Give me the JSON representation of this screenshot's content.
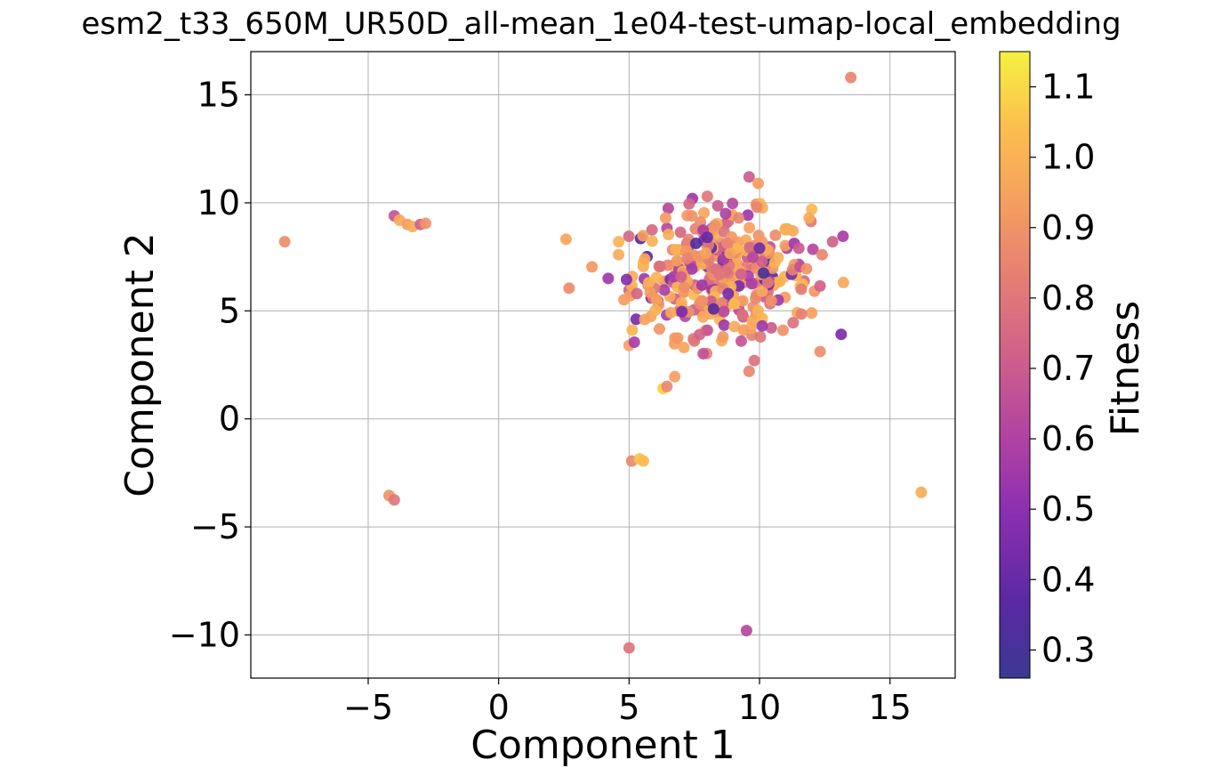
{
  "chart_data": {
    "type": "scatter",
    "title": "esm2_t33_650M_UR50D_all-mean_1e04-test-umap-local_embedding",
    "xlabel": "Component 1",
    "ylabel": "Component 2",
    "xlim": [
      -9.5,
      17.5
    ],
    "ylim": [
      -12,
      17
    ],
    "xticks": [
      -5,
      0,
      5,
      10,
      15
    ],
    "yticks": [
      -10,
      -5,
      0,
      5,
      10,
      15
    ],
    "xtick_labels": [
      "−5",
      "0",
      "5",
      "10",
      "15"
    ],
    "ytick_labels": [
      "−10",
      "−5",
      "0",
      "5",
      "10",
      "15"
    ],
    "grid": true,
    "colormap": "plasma",
    "colorbar": {
      "label": "Fitness",
      "range": [
        0.26,
        1.15
      ],
      "ticks": [
        0.3,
        0.4,
        0.5,
        0.6,
        0.7,
        0.8,
        0.9,
        1.0,
        1.1
      ],
      "tick_labels": [
        "0.3",
        "0.4",
        "0.5",
        "0.6",
        "0.7",
        "0.8",
        "0.9",
        "1.0",
        "1.1"
      ]
    },
    "points": [
      {
        "x": 13.5,
        "y": 15.8,
        "c": 0.85
      },
      {
        "x": -8.2,
        "y": 8.2,
        "c": 0.88
      },
      {
        "x": -4.0,
        "y": 9.4,
        "c": 0.68
      },
      {
        "x": -3.8,
        "y": 9.2,
        "c": 0.97
      },
      {
        "x": -3.5,
        "y": 9.0,
        "c": 0.93
      },
      {
        "x": -3.3,
        "y": 8.9,
        "c": 0.99
      },
      {
        "x": -3.0,
        "y": 9.0,
        "c": 0.72
      },
      {
        "x": -2.8,
        "y": 9.05,
        "c": 0.9
      },
      {
        "x": 2.7,
        "y": 6.05,
        "c": 0.87
      },
      {
        "x": 4.2,
        "y": 6.5,
        "c": 0.55
      },
      {
        "x": 4.9,
        "y": 6.45,
        "c": 0.48
      },
      {
        "x": 5.0,
        "y": 3.4,
        "c": 0.95
      },
      {
        "x": 5.2,
        "y": 3.55,
        "c": 0.58
      },
      {
        "x": 6.3,
        "y": 1.4,
        "c": 1.08
      },
      {
        "x": 6.45,
        "y": 1.5,
        "c": 0.86
      },
      {
        "x": 5.1,
        "y": -1.95,
        "c": 0.86
      },
      {
        "x": 5.4,
        "y": -1.85,
        "c": 1.05
      },
      {
        "x": 5.55,
        "y": -1.95,
        "c": 1.03
      },
      {
        "x": -4.2,
        "y": -3.55,
        "c": 0.9
      },
      {
        "x": -4.0,
        "y": -3.75,
        "c": 0.8
      },
      {
        "x": 16.2,
        "y": -3.4,
        "c": 0.98
      },
      {
        "x": 9.5,
        "y": -9.8,
        "c": 0.62
      },
      {
        "x": 5.0,
        "y": -10.6,
        "c": 0.79
      },
      {
        "x": 9.6,
        "y": 11.2,
        "c": 0.7
      },
      {
        "x": 9.95,
        "y": 10.9,
        "c": 0.93
      },
      {
        "x": 9.9,
        "y": 9.8,
        "c": 0.85
      },
      {
        "x": 8.0,
        "y": 10.3,
        "c": 0.8
      },
      {
        "x": 7.3,
        "y": 9.95,
        "c": 0.75
      },
      {
        "x": 12.0,
        "y": 9.7,
        "c": 1.02
      },
      {
        "x": 11.9,
        "y": 9.3,
        "c": 0.98
      },
      {
        "x": 13.2,
        "y": 8.45,
        "c": 0.58
      },
      {
        "x": 12.8,
        "y": 8.2,
        "c": 0.72
      },
      {
        "x": 12.4,
        "y": 7.6,
        "c": 0.85
      },
      {
        "x": 11.8,
        "y": 6.95,
        "c": 0.9
      },
      {
        "x": 11.6,
        "y": 6.0,
        "c": 0.82
      },
      {
        "x": 12.0,
        "y": 4.9,
        "c": 0.94
      },
      {
        "x": 11.6,
        "y": 4.85,
        "c": 0.83
      },
      {
        "x": 7.1,
        "y": 3.3,
        "c": 0.96
      },
      {
        "x": 7.5,
        "y": 3.6,
        "c": 0.8
      },
      {
        "x": 9.6,
        "y": 2.2,
        "c": 0.85
      },
      {
        "x": 9.8,
        "y": 2.7,
        "c": 0.78
      },
      {
        "x": 10.1,
        "y": 4.3,
        "c": 0.55
      },
      {
        "x": 10.9,
        "y": 4.1,
        "c": 0.9
      },
      {
        "x": 9.3,
        "y": 3.6,
        "c": 0.68
      },
      {
        "x": 8.6,
        "y": 3.8,
        "c": 0.92
      },
      {
        "x": 8.0,
        "y": 4.1,
        "c": 0.66
      },
      {
        "x": 7.7,
        "y": 3.9,
        "c": 0.73
      },
      {
        "x": 10.15,
        "y": 6.75,
        "c": 0.3
      },
      {
        "x": 8.0,
        "y": 8.4,
        "c": 0.4
      },
      {
        "x": 10.0,
        "y": 7.9,
        "c": 0.42
      },
      {
        "x": 8.8,
        "y": 5.8,
        "c": 0.45
      },
      {
        "x": 8.7,
        "y": 9.5,
        "c": 0.6
      },
      {
        "x": 9.2,
        "y": 9.3,
        "c": 0.85
      },
      {
        "x": 6.4,
        "y": 9.3,
        "c": 0.92
      },
      {
        "x": 5.6,
        "y": 7.4,
        "c": 0.97
      },
      {
        "x": 4.6,
        "y": 7.6,
        "c": 0.98
      },
      {
        "x": 5.3,
        "y": 5.8,
        "c": 0.74
      },
      {
        "x": 5.6,
        "y": 4.6,
        "c": 0.95
      }
    ],
    "cluster": {
      "x_center": 8.5,
      "y_center": 6.7,
      "x_spread": 1.7,
      "y_spread": 1.4,
      "count": 340,
      "c_values": [
        0.95,
        0.9,
        1.0,
        0.82,
        0.92,
        0.72,
        0.98,
        0.86,
        0.62,
        0.93,
        1.02,
        0.78,
        0.55,
        0.97,
        0.88,
        0.66,
        0.45,
        0.99,
        0.84,
        0.91,
        0.7,
        1.0,
        0.94,
        0.75,
        0.35,
        0.96,
        0.89,
        0.8,
        0.58,
        1.01
      ]
    }
  }
}
